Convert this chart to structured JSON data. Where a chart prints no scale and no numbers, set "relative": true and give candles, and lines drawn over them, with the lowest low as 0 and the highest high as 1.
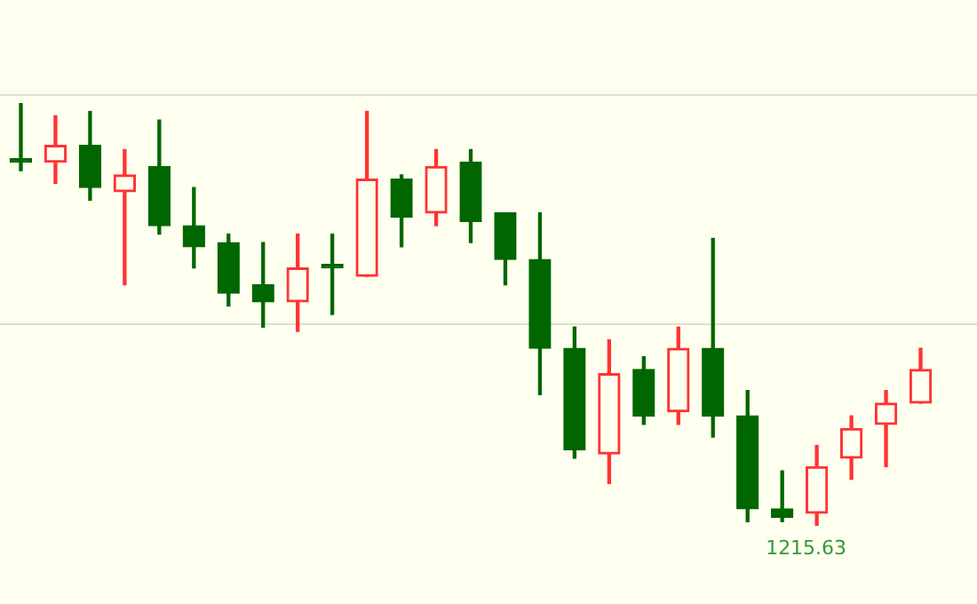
{
  "chart_data": {
    "type": "candlestick",
    "relative": true,
    "ref_lines": [
      {
        "axis": "y",
        "value": 0.48,
        "color": "#e0e0d0"
      },
      {
        "axis": "y",
        "value": 1.02,
        "color": "#e0e0d0"
      }
    ],
    "categories": [
      null,
      null,
      null,
      null,
      null,
      null,
      null,
      null,
      null,
      null,
      null,
      null,
      null,
      null,
      null,
      null,
      null,
      null,
      null,
      null,
      null,
      null,
      null,
      null,
      null,
      null,
      null
    ],
    "ohlc": [
      [
        0.86,
        1,
        0.84,
        0.86
      ],
      [
        0.86,
        0.97,
        0.81,
        0.9
      ],
      [
        0.9,
        0.98,
        0.77,
        0.8
      ],
      [
        0.79,
        0.89,
        0.57,
        0.83
      ],
      [
        0.85,
        0.96,
        0.69,
        0.71
      ],
      [
        0.71,
        0.8,
        0.61,
        0.66
      ],
      [
        0.67,
        0.69,
        0.52,
        0.55
      ],
      [
        0.57,
        0.67,
        0.47,
        0.53
      ],
      [
        0.53,
        0.69,
        0.46,
        0.61
      ],
      [
        0.61,
        0.69,
        0.5,
        0.61
      ],
      [
        0.59,
        0.98,
        0.59,
        0.82
      ],
      [
        0.82,
        0.83,
        0.66,
        0.73
      ],
      [
        0.74,
        0.89,
        0.71,
        0.85
      ],
      [
        0.86,
        0.89,
        0.67,
        0.72
      ],
      [
        0.74,
        0.74,
        0.57,
        0.63
      ],
      [
        0.63,
        0.74,
        0.31,
        0.42
      ],
      [
        0.42,
        0.47,
        0.16,
        0.18
      ],
      [
        0.17,
        0.44,
        0.1,
        0.36
      ],
      [
        0.37,
        0.4,
        0.24,
        0.26
      ],
      [
        0.27,
        0.47,
        0.24,
        0.42
      ],
      [
        0.42,
        0.68,
        0.21,
        0.26
      ],
      [
        0.26,
        0.32,
        0.01,
        0.04
      ],
      [
        0.04,
        0.13,
        0.01,
        0.02
      ],
      [
        0.03,
        0.19,
        0,
        0.14
      ],
      [
        0.16,
        0.26,
        0.11,
        0.23
      ],
      [
        0.24,
        0.32,
        0.14,
        0.29
      ],
      [
        0.29,
        0.42,
        0.29,
        0.37
      ]
    ],
    "colors": [
      "#006600",
      "#ff3333",
      "#006600",
      "#ff3333",
      "#006600",
      "#006600",
      "#006600",
      "#006600",
      "#ff3333",
      "#006600",
      "#ff3333",
      "#006600",
      "#ff3333",
      "#006600",
      "#006600",
      "#006600",
      "#006600",
      "#ff3333",
      "#006600",
      "#ff3333",
      "#006600",
      "#006600",
      "#006600",
      "#ff3333",
      "#ff3333",
      "#ff3333",
      "#ff3333"
    ],
    "annotations": [
      "1215.63"
    ]
  }
}
